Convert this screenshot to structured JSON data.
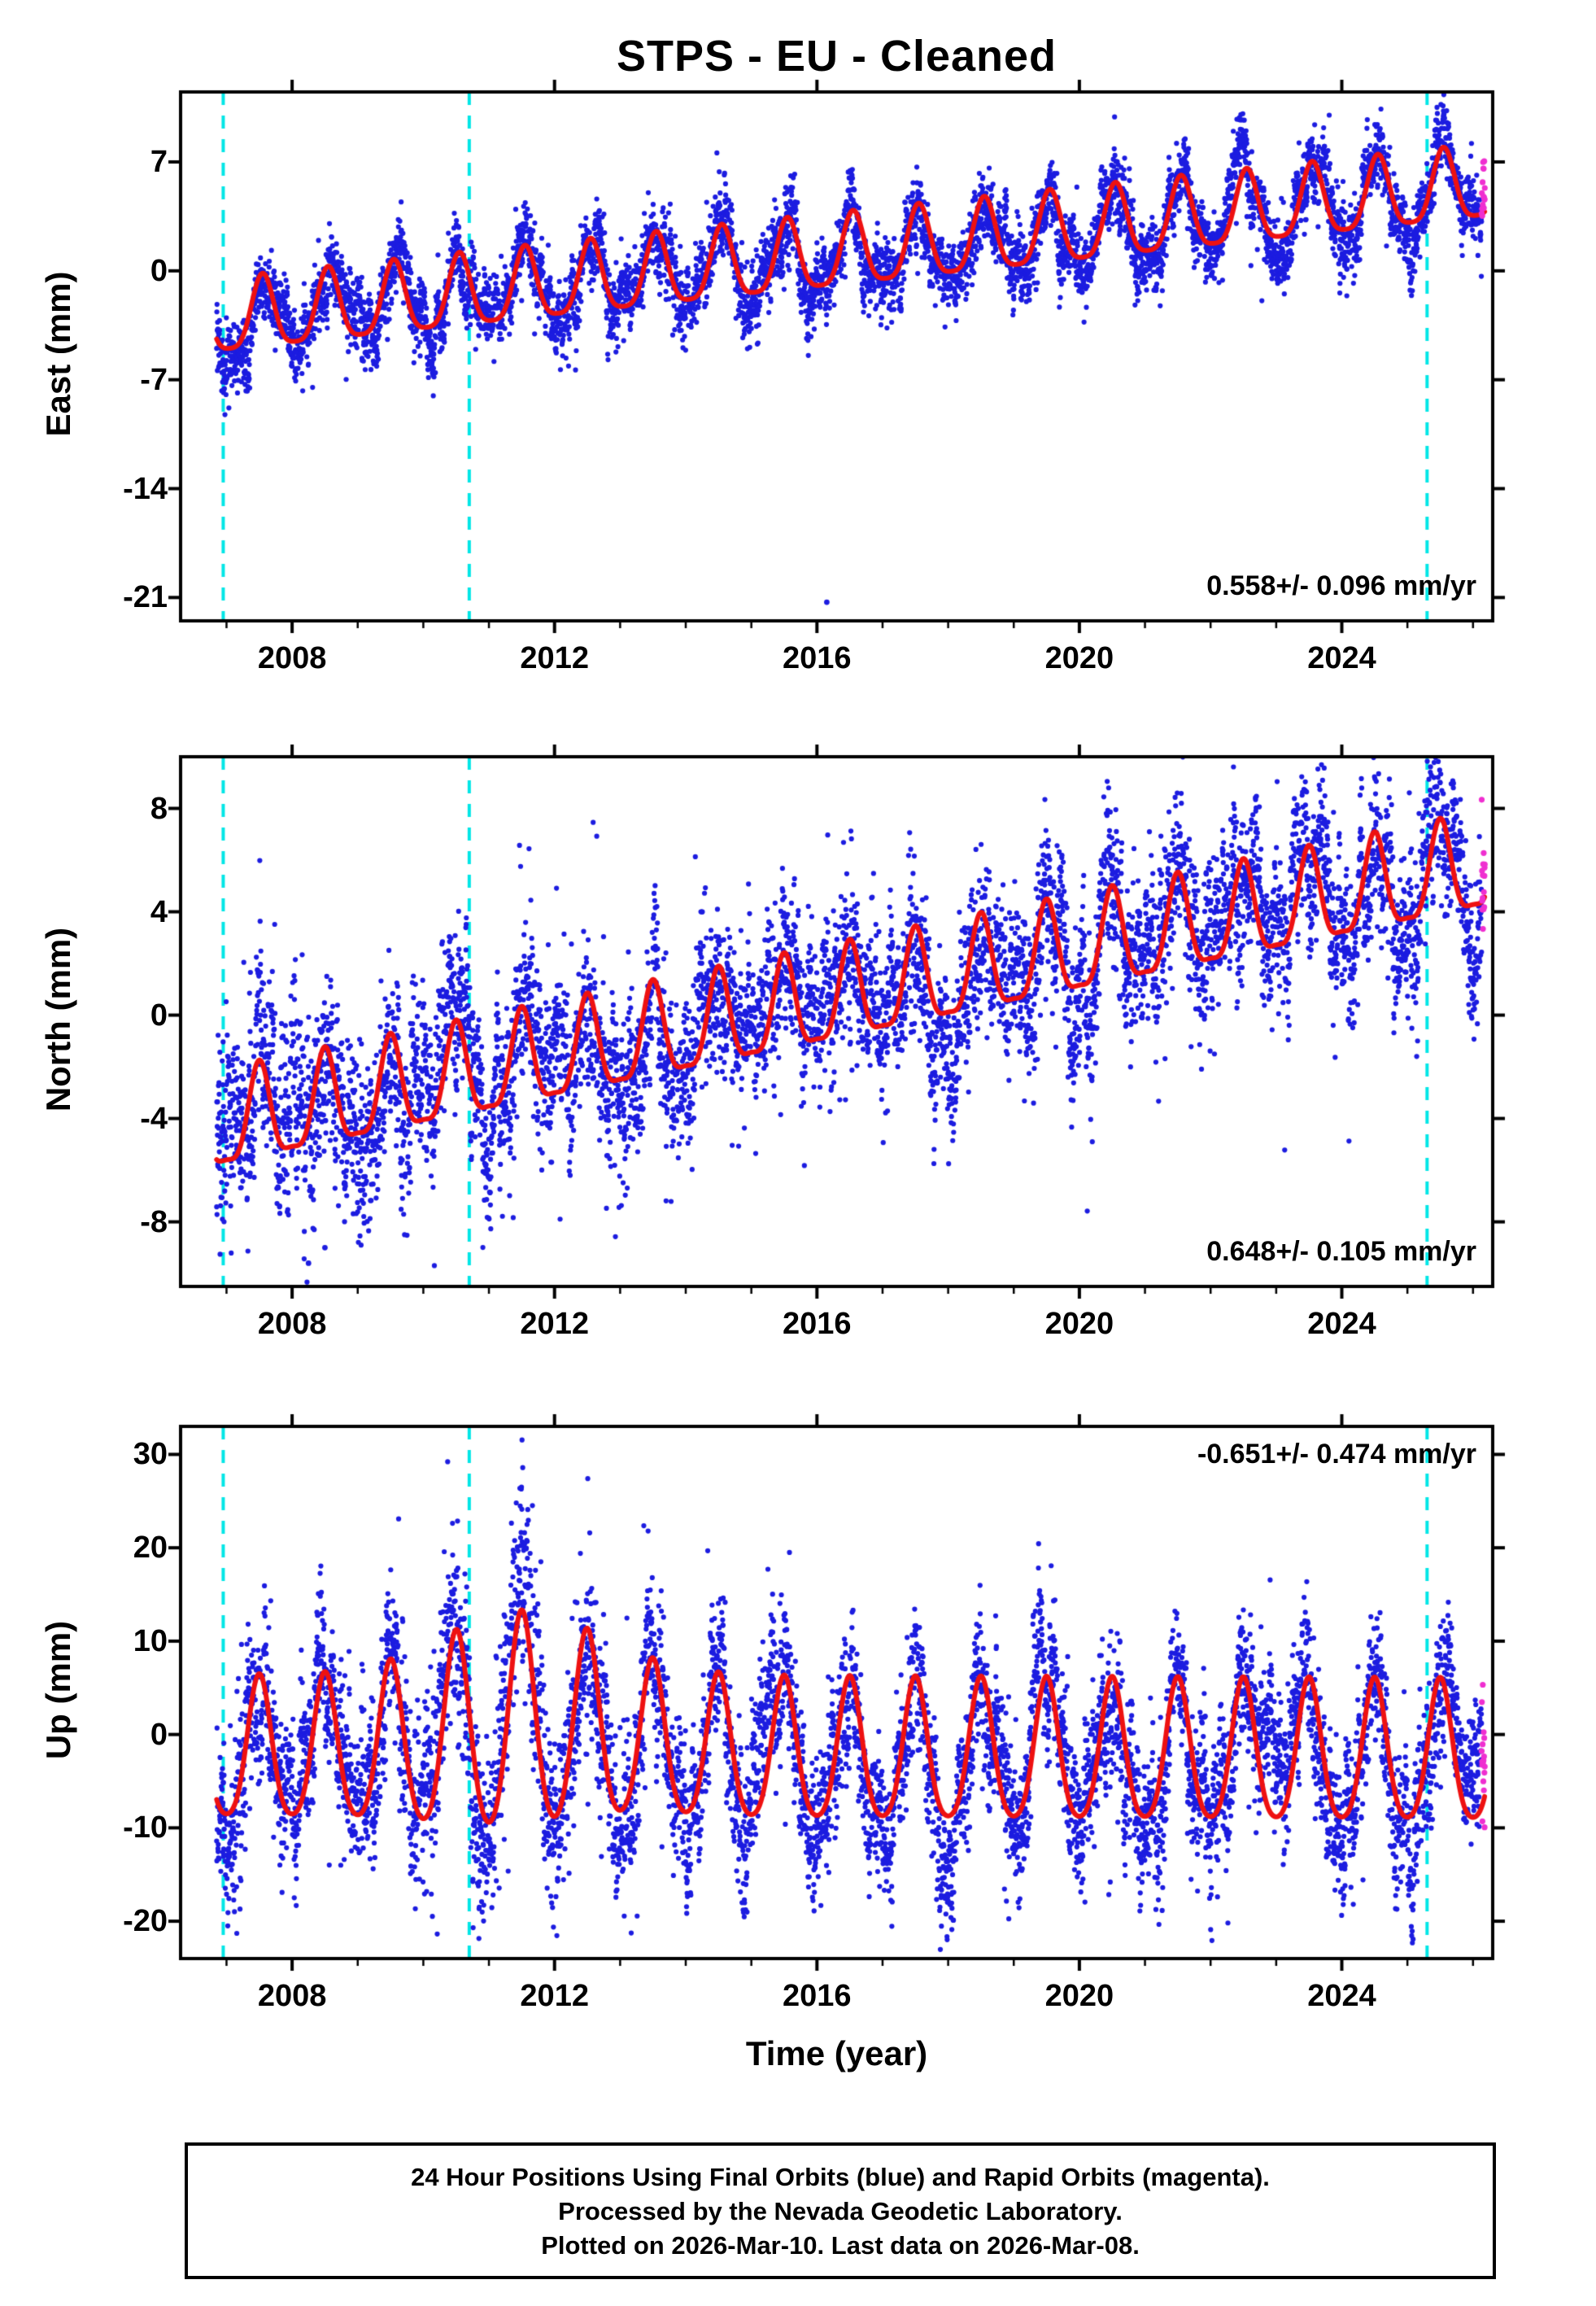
{
  "page": {
    "title": "STPS  - EU - Cleaned",
    "xlabel": "Time (year)"
  },
  "caption": {
    "lines": [
      "24 Hour Positions Using Final Orbits (blue) and Rapid Orbits (magenta).",
      "Processed by the Nevada Geodetic Laboratory.",
      "Plotted on 2026-Mar-10. Last data on 2026-Mar-08."
    ]
  },
  "colors": {
    "final_orbit_points": "#1c1ce0",
    "rapid_orbit_points": "#ef2fd0",
    "model_curve": "#ee1111",
    "event_line": "#00e6e6",
    "frame": "#000000",
    "background": "#ffffff"
  },
  "chart_data": {
    "type": "scatter",
    "station": "STPS",
    "reference_frame": "EU",
    "x": {
      "xlim": [
        2006.3,
        2026.3
      ],
      "xticks": [
        2008,
        2012,
        2016,
        2020,
        2024
      ],
      "minor_tick_interval": 1
    },
    "event_lines_years": [
      2006.95,
      2010.7,
      2025.3
    ],
    "data_span": {
      "t_start": 2006.85,
      "t_end": 2026.18,
      "rapid_after": 2026.13,
      "cadence_days": 1
    },
    "panels": [
      {
        "ylabel": "East (mm)",
        "rate_label": "0.558+/- 0.096 mm/yr",
        "rate_label_corner": "bottom-right",
        "ylim": [
          -22.5,
          11.5
        ],
        "yticks": [
          7,
          0,
          -7,
          -14,
          -21
        ],
        "trend_mm_per_yr": 0.558,
        "series": {
          "seed": 101,
          "trend": {
            "t0": 2007.0,
            "intercept": -3.2,
            "slope": 0.45
          },
          "seasonal": {
            "annual_amp": 2.3,
            "annual_peak": 0.55,
            "semiannual_amp": 0.5,
            "semiannual_peak": 0.55
          },
          "noise_sigma": 1.0,
          "outliers": [
            {
              "t": 2016.15,
              "y": -21.3
            }
          ]
        }
      },
      {
        "ylabel": "North (mm)",
        "rate_label": "0.648+/- 0.105 mm/yr",
        "rate_label_corner": "bottom-right",
        "ylim": [
          -10.5,
          10.0
        ],
        "yticks": [
          8,
          4,
          0,
          -4,
          -8
        ],
        "trend_mm_per_yr": 0.648,
        "series": {
          "seed": 202,
          "trend": {
            "t0": 2007.0,
            "intercept": -4.3,
            "slope": 0.52
          },
          "seasonal": {
            "annual_amp": 1.8,
            "annual_peak": 0.5,
            "semiannual_amp": 0.5,
            "semiannual_peak": 0.5
          },
          "noise_sigma": 1.3,
          "noise_bump": {
            "center": 2008.0,
            "width": 1.6,
            "amp": 0.4
          },
          "outliers": [
            {
              "t": 2008.25,
              "y": -9.6
            },
            {
              "t": 2008.5,
              "y": -9.0
            }
          ]
        }
      },
      {
        "ylabel": "Up (mm)",
        "rate_label": "-0.651+/- 0.474 mm/yr",
        "rate_label_corner": "top-right",
        "ylim": [
          -24,
          33
        ],
        "yticks": [
          30,
          20,
          10,
          0,
          -10,
          -20
        ],
        "trend_mm_per_yr": -0.651,
        "series": {
          "seed": 303,
          "trend": {
            "t0": 2007.0,
            "intercept": -2.2,
            "slope": -0.02
          },
          "seasonal": {
            "annual_amp": 7.5,
            "annual_peak": 0.5,
            "semiannual_amp": 1.2,
            "semiannual_peak": 0.5
          },
          "center_bump": {
            "center": 2011.7,
            "width": 1.8,
            "amp": 3.2
          },
          "amp_bump": {
            "center": 2011.4,
            "width": 1.6,
            "amp": 3.8
          },
          "noise_sigma": 3.3,
          "noise_bump": {
            "center": 2011.3,
            "width": 1.7,
            "amp": 1.9
          },
          "outliers": []
        }
      }
    ]
  }
}
